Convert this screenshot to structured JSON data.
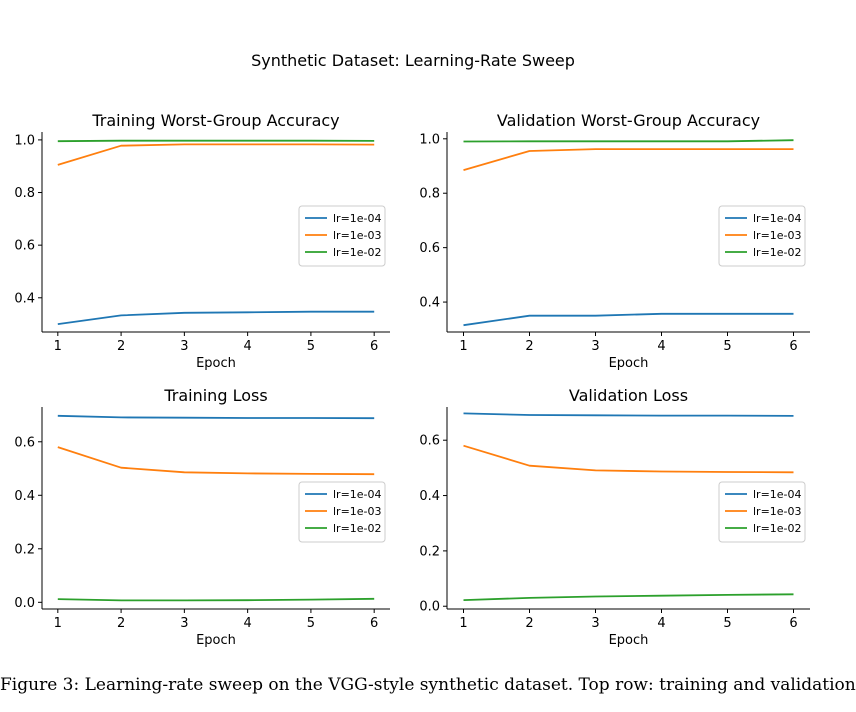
{
  "figure_title": "Synthetic Dataset: Learning-Rate Sweep",
  "caption": "Figure 3: Learning-rate sweep on the VGG-style synthetic dataset. Top row: training and validation",
  "colors": {
    "lr=1e-04": "#1f77b4",
    "lr=1e-03": "#ff7f0e",
    "lr=1e-02": "#2ca02c"
  },
  "chart_data": [
    {
      "type": "line",
      "title": "Training Worst-Group Accuracy",
      "xlabel": "Epoch",
      "ylabel": "",
      "x": [
        1,
        2,
        3,
        4,
        5,
        6
      ],
      "xlim": [
        0.75,
        6.25
      ],
      "ylim": [
        0.27,
        1.03
      ],
      "xticks": [
        "1",
        "2",
        "3",
        "4",
        "5",
        "6"
      ],
      "yticks": [
        0.4,
        0.6,
        0.8,
        1.0
      ],
      "ytick_labels": [
        "0.4",
        "0.6",
        "0.8",
        "1.0"
      ],
      "grid": false,
      "legend_position": "center-right",
      "series": [
        {
          "name": "lr=1e-04",
          "values": [
            0.3,
            0.333,
            0.343,
            0.345,
            0.347,
            0.347
          ]
        },
        {
          "name": "lr=1e-03",
          "values": [
            0.905,
            0.978,
            0.983,
            0.983,
            0.983,
            0.982
          ]
        },
        {
          "name": "lr=1e-02",
          "values": [
            0.995,
            0.997,
            0.997,
            0.997,
            0.997,
            0.996
          ]
        }
      ]
    },
    {
      "type": "line",
      "title": "Validation Worst-Group Accuracy",
      "xlabel": "Epoch",
      "ylabel": "",
      "x": [
        1,
        2,
        3,
        4,
        5,
        6
      ],
      "xlim": [
        0.75,
        6.25
      ],
      "ylim": [
        0.29,
        1.025
      ],
      "xticks": [
        "1",
        "2",
        "3",
        "4",
        "5",
        "6"
      ],
      "yticks": [
        0.4,
        0.6,
        0.8,
        1.0
      ],
      "ytick_labels": [
        "0.4",
        "0.6",
        "0.8",
        "1.0"
      ],
      "grid": false,
      "legend_position": "center-right",
      "series": [
        {
          "name": "lr=1e-04",
          "values": [
            0.315,
            0.35,
            0.35,
            0.357,
            0.357,
            0.357
          ]
        },
        {
          "name": "lr=1e-03",
          "values": [
            0.885,
            0.955,
            0.962,
            0.962,
            0.962,
            0.962
          ]
        },
        {
          "name": "lr=1e-02",
          "values": [
            0.99,
            0.991,
            0.991,
            0.991,
            0.991,
            0.995
          ]
        }
      ]
    },
    {
      "type": "line",
      "title": "Training Loss",
      "xlabel": "Epoch",
      "ylabel": "",
      "x": [
        1,
        2,
        3,
        4,
        5,
        6
      ],
      "xlim": [
        0.75,
        6.25
      ],
      "ylim": [
        -0.025,
        0.73
      ],
      "xticks": [
        "1",
        "2",
        "3",
        "4",
        "5",
        "6"
      ],
      "yticks": [
        0.0,
        0.2,
        0.4,
        0.6
      ],
      "ytick_labels": [
        "0.0",
        "0.2",
        "0.4",
        "0.6"
      ],
      "grid": false,
      "legend_position": "center-right",
      "series": [
        {
          "name": "lr=1e-04",
          "values": [
            0.697,
            0.691,
            0.69,
            0.689,
            0.689,
            0.688
          ]
        },
        {
          "name": "lr=1e-03",
          "values": [
            0.58,
            0.503,
            0.486,
            0.482,
            0.48,
            0.479
          ]
        },
        {
          "name": "lr=1e-02",
          "values": [
            0.012,
            0.007,
            0.007,
            0.008,
            0.01,
            0.013
          ]
        }
      ]
    },
    {
      "type": "line",
      "title": "Validation Loss",
      "xlabel": "Epoch",
      "ylabel": "",
      "x": [
        1,
        2,
        3,
        4,
        5,
        6
      ],
      "xlim": [
        0.75,
        6.25
      ],
      "ylim": [
        -0.01,
        0.72
      ],
      "xticks": [
        "1",
        "2",
        "3",
        "4",
        "5",
        "6"
      ],
      "yticks": [
        0.0,
        0.2,
        0.4,
        0.6
      ],
      "ytick_labels": [
        "0.0",
        "0.2",
        "0.4",
        "0.6"
      ],
      "grid": false,
      "legend_position": "center-right",
      "series": [
        {
          "name": "lr=1e-04",
          "values": [
            0.697,
            0.691,
            0.69,
            0.689,
            0.689,
            0.688
          ]
        },
        {
          "name": "lr=1e-03",
          "values": [
            0.58,
            0.508,
            0.491,
            0.487,
            0.485,
            0.484
          ]
        },
        {
          "name": "lr=1e-02",
          "values": [
            0.022,
            0.03,
            0.035,
            0.038,
            0.041,
            0.043
          ]
        }
      ]
    }
  ]
}
